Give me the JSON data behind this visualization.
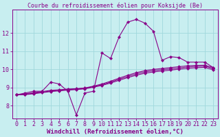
{
  "line1": {
    "x": [
      0,
      1,
      2,
      3,
      4,
      5,
      6,
      7,
      8,
      9,
      10,
      11,
      12,
      13,
      14,
      15,
      16,
      17,
      18,
      19,
      20,
      21,
      22,
      23
    ],
    "y": [
      8.6,
      8.7,
      8.8,
      8.8,
      9.3,
      9.2,
      8.8,
      7.5,
      8.7,
      8.8,
      10.9,
      10.6,
      11.8,
      12.6,
      12.75,
      12.55,
      12.1,
      10.5,
      10.7,
      10.65,
      10.4,
      10.4,
      10.4,
      10.1
    ]
  },
  "line2": {
    "x": [
      0,
      1,
      2,
      3,
      4,
      5,
      6,
      7,
      8,
      9,
      10,
      11,
      12,
      13,
      14,
      15,
      16,
      17,
      18,
      19,
      20,
      21,
      22,
      23
    ],
    "y": [
      8.6,
      8.65,
      8.72,
      8.78,
      8.85,
      8.88,
      8.92,
      8.94,
      8.98,
      9.08,
      9.2,
      9.35,
      9.52,
      9.68,
      9.82,
      9.93,
      10.0,
      10.05,
      10.1,
      10.15,
      10.2,
      10.22,
      10.23,
      10.1
    ]
  },
  "line3": {
    "x": [
      0,
      1,
      2,
      3,
      4,
      5,
      6,
      7,
      8,
      9,
      10,
      11,
      12,
      13,
      14,
      15,
      16,
      17,
      18,
      19,
      20,
      21,
      22,
      23
    ],
    "y": [
      8.6,
      8.63,
      8.69,
      8.75,
      8.81,
      8.85,
      8.89,
      8.92,
      8.96,
      9.05,
      9.16,
      9.3,
      9.46,
      9.61,
      9.75,
      9.86,
      9.93,
      9.98,
      10.03,
      10.08,
      10.13,
      10.16,
      10.18,
      10.05
    ]
  },
  "line4": {
    "x": [
      0,
      1,
      2,
      3,
      4,
      5,
      6,
      7,
      8,
      9,
      10,
      11,
      12,
      13,
      14,
      15,
      16,
      17,
      18,
      19,
      20,
      21,
      22,
      23
    ],
    "y": [
      8.6,
      8.61,
      8.66,
      8.72,
      8.78,
      8.82,
      8.86,
      8.89,
      8.93,
      9.02,
      9.12,
      9.25,
      9.4,
      9.55,
      9.68,
      9.79,
      9.86,
      9.91,
      9.96,
      10.01,
      10.06,
      10.09,
      10.11,
      9.98
    ]
  },
  "line_color": "#880088",
  "marker": "D",
  "marker_size": 2.2,
  "bg_color": "#c8eef0",
  "grid_color": "#a0d8dc",
  "xlabel": "Windchill (Refroidissement éolien,°C)",
  "title": "Courbe du refroidissement éolien pour Koksijde (Be)",
  "xlim": [
    -0.5,
    23.5
  ],
  "ylim": [
    7.3,
    13.3
  ],
  "yticks": [
    8,
    9,
    10,
    11,
    12
  ],
  "xticks": [
    0,
    1,
    2,
    3,
    4,
    5,
    6,
    7,
    8,
    9,
    10,
    11,
    12,
    13,
    14,
    15,
    16,
    17,
    18,
    19,
    20,
    21,
    22,
    23
  ],
  "xlabel_color": "#880088",
  "xlabel_fontsize": 6.5,
  "title_fontsize": 6,
  "tick_fontsize": 6,
  "tick_color": "#880088",
  "axis_color": "#880088",
  "linewidth": 0.8
}
